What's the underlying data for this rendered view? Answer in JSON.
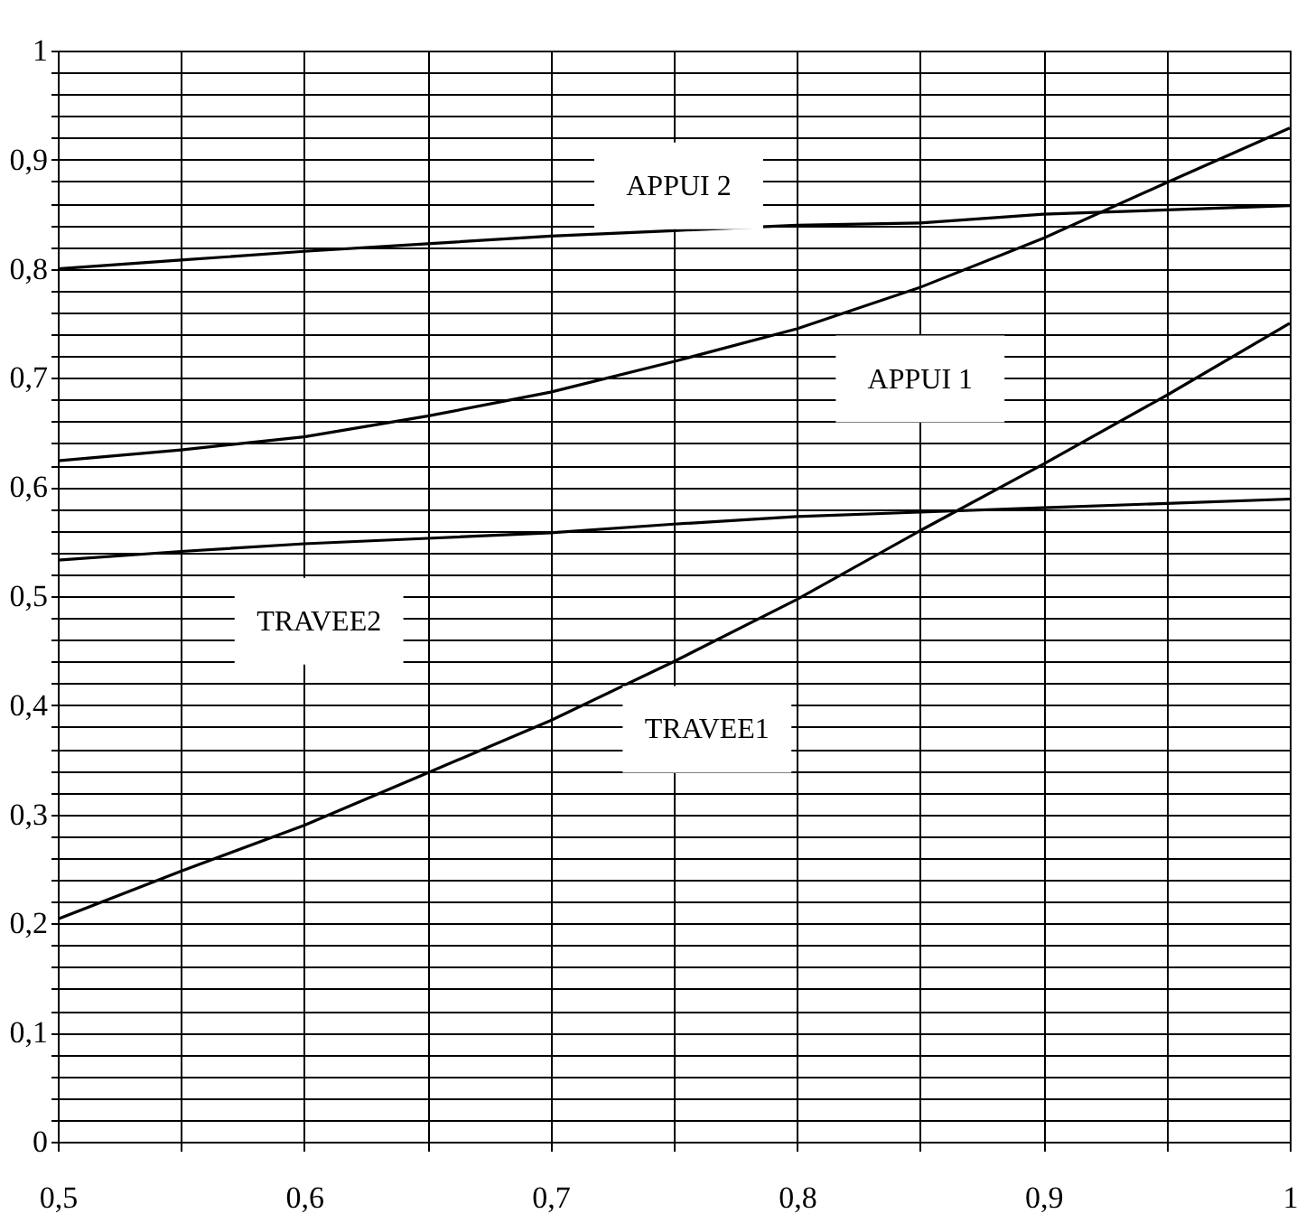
{
  "chart_data": {
    "type": "line",
    "x": [
      0.5,
      0.55,
      0.6,
      0.65,
      0.7,
      0.75,
      0.8,
      0.85,
      0.9,
      0.95,
      1
    ],
    "series": [
      {
        "name": "APPUI 2",
        "color": "#000000",
        "values": [
          0.8,
          0.808,
          0.816,
          0.823,
          0.83,
          0.835,
          0.84,
          0.842,
          0.85,
          0.854,
          0.858
        ]
      },
      {
        "name": "APPUI 1",
        "color": "#000000",
        "values": [
          0.624,
          0.634,
          0.646,
          0.665,
          0.687,
          0.715,
          0.745,
          0.783,
          0.828,
          0.879,
          0.929
        ]
      },
      {
        "name": "TRAVEE2",
        "color": "#000000",
        "values": [
          0.533,
          0.541,
          0.548,
          0.553,
          0.558,
          0.566,
          0.573,
          0.577,
          0.581,
          0.585,
          0.589
        ]
      },
      {
        "name": "TRAVEE1",
        "color": "#000000",
        "values": [
          0.204,
          0.248,
          0.29,
          0.338,
          0.386,
          0.44,
          0.497,
          0.56,
          0.621,
          0.684,
          0.75
        ]
      }
    ],
    "xlim": [
      0.5,
      1
    ],
    "xticks": [
      {
        "value": 0.5,
        "label": "0,5"
      },
      {
        "value": 0.55,
        "label": null
      },
      {
        "value": 0.6,
        "label": "0,6"
      },
      {
        "value": 0.65,
        "label": null
      },
      {
        "value": 0.7,
        "label": "0,7"
      },
      {
        "value": 0.75,
        "label": null
      },
      {
        "value": 0.8,
        "label": "0,8"
      },
      {
        "value": 0.85,
        "label": null
      },
      {
        "value": 0.9,
        "label": "0,9"
      },
      {
        "value": 0.95,
        "label": null
      },
      1
    ],
    "ylim": [
      0,
      1
    ],
    "yticks": [
      0,
      {
        "value": 0.02,
        "label": null
      },
      {
        "value": 0.04,
        "label": null
      },
      {
        "value": 0.06,
        "label": null
      },
      {
        "value": 0.08,
        "label": null
      },
      {
        "value": 0.1,
        "label": "0,1"
      },
      {
        "value": 0.12,
        "label": null
      },
      {
        "value": 0.14,
        "label": null
      },
      {
        "value": 0.16,
        "label": null
      },
      {
        "value": 0.18,
        "label": null
      },
      {
        "value": 0.2,
        "label": "0,2"
      },
      {
        "value": 0.22,
        "label": null
      },
      {
        "value": 0.24,
        "label": null
      },
      {
        "value": 0.26,
        "label": null
      },
      {
        "value": 0.28,
        "label": null
      },
      {
        "value": 0.3,
        "label": "0,3"
      },
      {
        "value": 0.32,
        "label": null
      },
      {
        "value": 0.34,
        "label": null
      },
      {
        "value": 0.36,
        "label": null
      },
      {
        "value": 0.38,
        "label": null
      },
      {
        "value": 0.4,
        "label": "0,4"
      },
      {
        "value": 0.42,
        "label": null
      },
      {
        "value": 0.44,
        "label": null
      },
      {
        "value": 0.46,
        "label": null
      },
      {
        "value": 0.48,
        "label": null
      },
      {
        "value": 0.5,
        "label": "0,5"
      },
      {
        "value": 0.52,
        "label": null
      },
      {
        "value": 0.54,
        "label": null
      },
      {
        "value": 0.56,
        "label": null
      },
      {
        "value": 0.58,
        "label": null
      },
      {
        "value": 0.6,
        "label": "0,6"
      },
      {
        "value": 0.62,
        "label": null
      },
      {
        "value": 0.64,
        "label": null
      },
      {
        "value": 0.66,
        "label": null
      },
      {
        "value": 0.68,
        "label": null
      },
      {
        "value": 0.7,
        "label": "0,7"
      },
      {
        "value": 0.72,
        "label": null
      },
      {
        "value": 0.74,
        "label": null
      },
      {
        "value": 0.76,
        "label": null
      },
      {
        "value": 0.78,
        "label": null
      },
      {
        "value": 0.8,
        "label": "0,8"
      },
      {
        "value": 0.82,
        "label": null
      },
      {
        "value": 0.84,
        "label": null
      },
      {
        "value": 0.86,
        "label": null
      },
      {
        "value": 0.88,
        "label": null
      },
      {
        "value": 0.9,
        "label": "0,9"
      },
      {
        "value": 0.92,
        "label": null
      },
      {
        "value": 0.94,
        "label": null
      },
      {
        "value": 0.96,
        "label": null
      },
      {
        "value": 0.98,
        "label": null
      },
      1
    ],
    "grid": true,
    "legend": false,
    "marker": "none",
    "line_style": "solid"
  }
}
